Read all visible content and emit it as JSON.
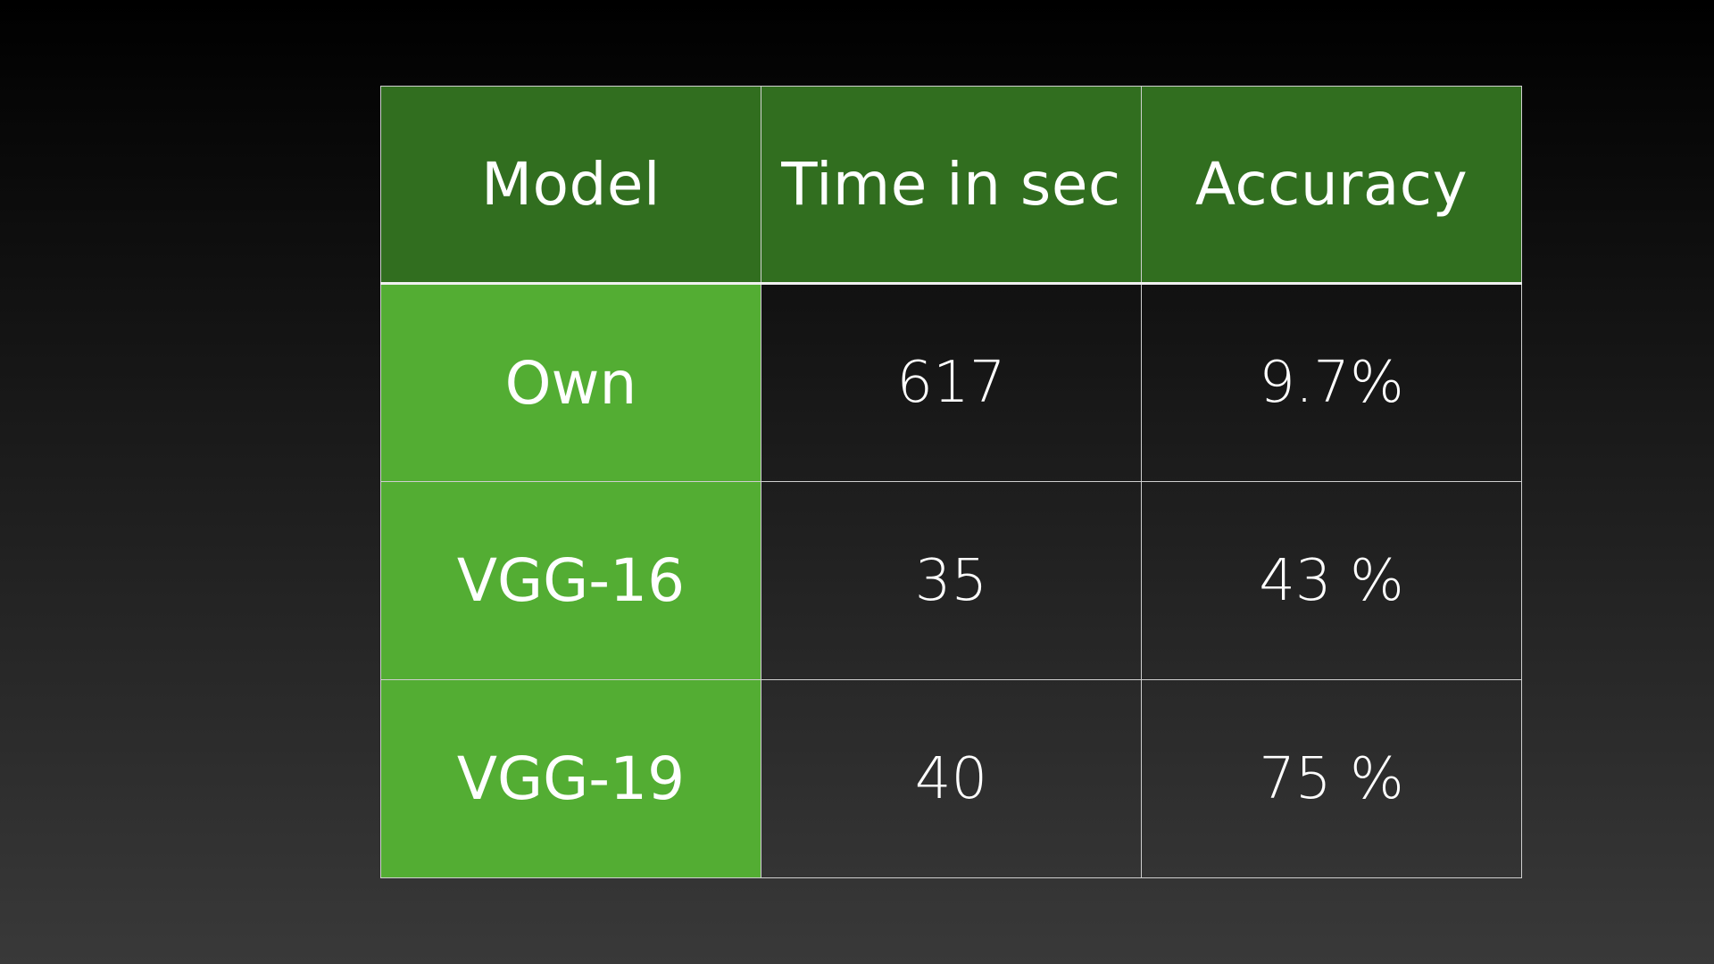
{
  "table": {
    "columns": [
      "Model",
      "Time in sec",
      "Accuracy"
    ],
    "rows": [
      {
        "model": "Own",
        "time": "617",
        "accuracy": "9.7%"
      },
      {
        "model": "VGG-16",
        "time": "35",
        "accuracy": "43 %"
      },
      {
        "model": "VGG-19",
        "time": "40",
        "accuracy": "75 %"
      }
    ]
  },
  "colors": {
    "header_bg": "#316e1f",
    "model_cell_bg": "#53ad33",
    "text": "#ffffff",
    "background_top": "#000000",
    "background_bottom": "#393939"
  }
}
